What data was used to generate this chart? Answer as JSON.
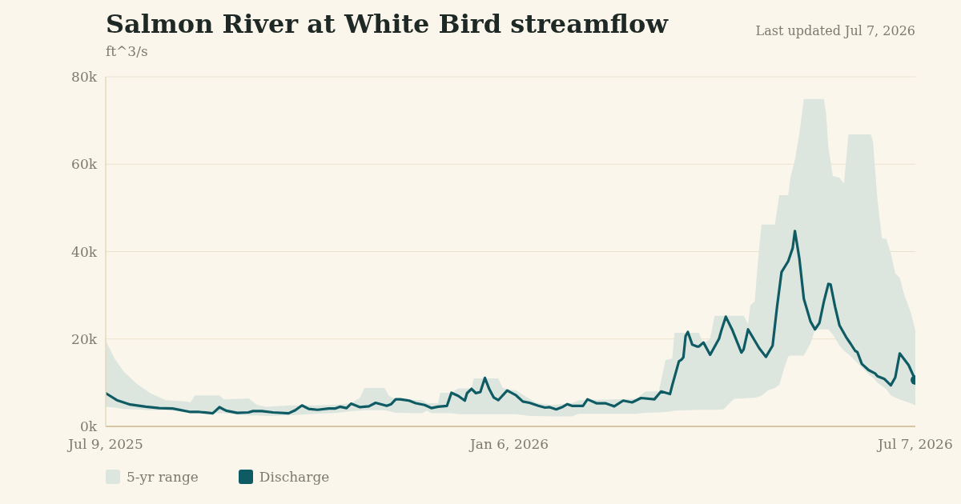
{
  "chart_data": {
    "type": "line",
    "title": "Salmon River at White Bird streamflow",
    "ylabel": "ft^3/s",
    "annotations": [
      "Last updated Jul 7, 2026"
    ],
    "xlim": [
      "2025-07-09",
      "2026-07-07"
    ],
    "xticks": [
      {
        "value": "2025-07-09",
        "label": "Jul 9, 2025"
      },
      {
        "value": "2026-01-06",
        "label": "Jan 6, 2026"
      },
      {
        "value": "2026-07-07",
        "label": "Jul 7, 2026"
      }
    ],
    "ylim": [
      0,
      80000
    ],
    "yticks": [
      {
        "value": 0,
        "label": "0k"
      },
      {
        "value": 20000,
        "label": "20k"
      },
      {
        "value": 40000,
        "label": "40k"
      },
      {
        "value": 60000,
        "label": "60k"
      },
      {
        "value": 80000,
        "label": "80k"
      }
    ],
    "grid": "y",
    "legend": "bottom left",
    "series": [
      {
        "name": "5-yr range",
        "type": "area",
        "color": "#dce6df",
        "x": [
          "2025-07-09",
          "2025-07-13",
          "2025-07-17",
          "2025-07-23",
          "2025-07-29",
          "2025-08-05",
          "2025-08-14",
          "2025-08-16",
          "2025-08-18",
          "2025-08-29",
          "2025-08-31",
          "2025-09-11",
          "2025-09-15",
          "2025-09-19",
          "2025-09-29",
          "2025-10-11",
          "2025-10-21",
          "2025-10-27",
          "2025-10-31",
          "2025-11-02",
          "2025-11-11",
          "2025-11-13",
          "2025-11-16",
          "2025-11-28",
          "2025-11-30",
          "2025-12-02",
          "2025-12-05",
          "2025-12-06",
          "2025-12-11",
          "2025-12-14",
          "2025-12-20",
          "2025-12-21",
          "2026-01-01",
          "2026-01-03",
          "2026-01-09",
          "2026-01-15",
          "2026-01-18",
          "2026-01-25",
          "2026-02-03",
          "2026-02-06",
          "2026-03-04",
          "2026-03-08",
          "2026-03-14",
          "2026-03-17",
          "2026-03-20",
          "2026-03-21",
          "2026-04-01",
          "2026-04-03",
          "2026-04-06",
          "2026-04-08",
          "2026-04-12",
          "2026-04-15",
          "2026-04-17",
          "2026-04-21",
          "2026-04-23",
          "2026-04-24",
          "2026-04-26",
          "2026-04-27",
          "2026-04-29",
          "2026-05-02",
          "2026-05-05",
          "2026-05-07",
          "2026-05-09",
          "2026-05-11",
          "2026-05-12",
          "2026-05-14",
          "2026-05-16",
          "2026-05-18",
          "2026-05-21",
          "2026-05-23",
          "2026-05-27",
          "2026-05-28",
          "2026-05-29",
          "2026-05-31",
          "2026-06-03",
          "2026-06-05",
          "2026-06-07",
          "2026-06-17",
          "2026-06-18",
          "2026-06-20",
          "2026-06-22",
          "2026-06-24",
          "2026-06-26",
          "2026-06-28",
          "2026-06-30",
          "2026-07-02",
          "2026-07-05",
          "2026-07-07"
        ],
        "values": [
          null,
          null,
          null,
          null,
          null,
          null,
          null,
          null,
          null,
          null,
          null,
          null,
          null,
          null,
          null,
          null,
          null,
          null,
          null,
          null,
          null,
          null,
          null,
          null,
          null,
          null,
          null,
          null,
          null,
          null,
          null,
          null,
          null,
          null,
          null,
          null,
          null,
          null,
          null,
          null,
          null,
          null,
          null,
          null,
          null,
          null,
          null,
          null,
          null,
          null,
          null,
          null,
          null,
          null,
          null,
          null,
          null,
          null,
          null,
          null,
          null,
          null,
          null,
          null,
          null,
          null,
          null,
          null,
          null,
          null,
          null,
          null,
          null,
          null,
          null,
          null,
          null,
          null,
          null,
          null,
          null,
          null,
          null,
          null,
          null,
          null,
          null,
          null
        ],
        "lower": [
          4500,
          4300,
          4000,
          3900,
          3700,
          3700,
          3500,
          3300,
          3300,
          3000,
          3000,
          2500,
          2500,
          2400,
          2500,
          2900,
          3100,
          3500,
          3600,
          3700,
          3700,
          3500,
          3100,
          3000,
          3600,
          3000,
          3000,
          3000,
          3000,
          2800,
          2800,
          2800,
          2800,
          2800,
          2800,
          2400,
          2400,
          2300,
          2300,
          2900,
          2900,
          3100,
          3200,
          3300,
          3500,
          3600,
          3800,
          3800,
          3800,
          3800,
          3900,
          5500,
          6300,
          6400,
          6500,
          6500,
          6600,
          6700,
          7000,
          8300,
          8800,
          9500,
          13000,
          16000,
          16200,
          16200,
          16200,
          16200,
          19000,
          22200,
          22200,
          22200,
          22200,
          21000,
          18500,
          17300,
          16500,
          11500,
          11200,
          10000,
          9300,
          8500,
          7100,
          6600,
          6200,
          5800,
          5300,
          4800
        ],
        "upper": [
          19600,
          15500,
          12600,
          9700,
          7600,
          6000,
          5700,
          5500,
          7100,
          7100,
          6200,
          6400,
          4900,
          4500,
          4800,
          4800,
          5000,
          5300,
          6600,
          8800,
          8800,
          7000,
          6200,
          6000,
          5300,
          5300,
          5300,
          7700,
          7700,
          8700,
          8700,
          11000,
          11000,
          8800,
          8200,
          6300,
          5400,
          4900,
          5300,
          6000,
          6300,
          8000,
          8000,
          15200,
          15500,
          21400,
          21400,
          18900,
          20100,
          25300,
          25300,
          25300,
          25300,
          25300,
          23400,
          27700,
          28600,
          35300,
          46200,
          46200,
          46200,
          52900,
          52900,
          52900,
          57000,
          61000,
          67000,
          74900,
          74900,
          74900,
          74900,
          71500,
          64000,
          57300,
          56900,
          55500,
          66800,
          66800,
          65200,
          52000,
          43000,
          42900,
          39600,
          35000,
          34000,
          30200,
          26000,
          22000
        ]
      },
      {
        "name": "Discharge",
        "color": "#0f5b63",
        "line_style": "solid",
        "x": [
          "2025-07-09",
          "2025-07-14",
          "2025-07-20",
          "2025-07-27",
          "2025-08-02",
          "2025-08-08",
          "2025-08-16",
          "2025-08-20",
          "2025-08-26",
          "2025-08-29",
          "2025-09-01",
          "2025-09-06",
          "2025-09-11",
          "2025-09-13",
          "2025-09-17",
          "2025-09-22",
          "2025-09-29",
          "2025-10-02",
          "2025-10-05",
          "2025-10-08",
          "2025-10-12",
          "2025-10-17",
          "2025-10-20",
          "2025-10-22",
          "2025-10-25",
          "2025-10-27",
          "2025-10-31",
          "2025-11-04",
          "2025-11-07",
          "2025-11-12",
          "2025-11-14",
          "2025-11-16",
          "2025-11-18",
          "2025-11-22",
          "2025-11-25",
          "2025-11-29",
          "2025-12-02",
          "2025-12-05",
          "2025-12-09",
          "2025-12-11",
          "2025-12-14",
          "2025-12-17",
          "2025-12-18",
          "2025-12-20",
          "2025-12-22",
          "2025-12-24",
          "2025-12-26",
          "2025-12-28",
          "2025-12-30",
          "2026-01-01",
          "2026-01-05",
          "2026-01-09",
          "2026-01-12",
          "2026-01-15",
          "2026-01-19",
          "2026-01-22",
          "2026-01-24",
          "2026-01-27",
          "2026-01-30",
          "2026-02-01",
          "2026-02-03",
          "2026-02-08",
          "2026-02-10",
          "2026-02-14",
          "2026-02-18",
          "2026-02-22",
          "2026-02-26",
          "2026-03-02",
          "2026-03-06",
          "2026-03-12",
          "2026-03-15",
          "2026-03-19",
          "2026-03-20",
          "2026-03-23",
          "2026-03-24",
          "2026-03-25",
          "2026-03-26",
          "2026-03-27",
          "2026-03-29",
          "2026-03-31",
          "2026-04-01",
          "2026-04-03",
          "2026-04-06",
          "2026-04-10",
          "2026-04-11",
          "2026-04-13",
          "2026-04-16",
          "2026-04-17",
          "2026-04-20",
          "2026-04-21",
          "2026-04-23",
          "2026-04-28",
          "2026-05-01",
          "2026-05-04",
          "2026-05-06",
          "2026-05-08",
          "2026-05-11",
          "2026-05-13",
          "2026-05-14",
          "2026-05-16",
          "2026-05-18",
          "2026-05-21",
          "2026-05-23",
          "2026-05-25",
          "2026-05-27",
          "2026-05-29",
          "2026-05-30",
          "2026-06-01",
          "2026-06-03",
          "2026-06-06",
          "2026-06-08",
          "2026-06-10",
          "2026-06-11",
          "2026-06-13",
          "2026-06-16",
          "2026-06-19",
          "2026-06-20",
          "2026-06-23",
          "2026-06-26",
          "2026-06-28",
          "2026-06-30",
          "2026-07-04",
          "2026-07-07"
        ],
        "values": [
          7600,
          6000,
          5000,
          4500,
          4200,
          4100,
          3300,
          3300,
          3000,
          4400,
          3600,
          3100,
          3200,
          3500,
          3500,
          3200,
          3000,
          3700,
          4800,
          4000,
          3800,
          4100,
          4100,
          4500,
          4200,
          5200,
          4400,
          4600,
          5400,
          4700,
          5100,
          6200,
          6200,
          5900,
          5300,
          4900,
          4200,
          4500,
          4700,
          7700,
          7000,
          5900,
          7600,
          8600,
          7600,
          7900,
          11100,
          8500,
          6600,
          6000,
          8200,
          7100,
          5700,
          5400,
          4700,
          4300,
          4400,
          3900,
          4500,
          5100,
          4700,
          4700,
          6200,
          5300,
          5300,
          4600,
          5900,
          5500,
          6500,
          6200,
          8000,
          7400,
          9400,
          14900,
          15200,
          15800,
          20700,
          21600,
          18700,
          18300,
          18300,
          19200,
          16400,
          20100,
          21900,
          25100,
          22000,
          20700,
          16900,
          17600,
          22200,
          17900,
          15900,
          18500,
          27400,
          35300,
          37800,
          40800,
          44700,
          38400,
          29200,
          24000,
          22200,
          23700,
          28600,
          32600,
          32500,
          27400,
          23100,
          20400,
          18900,
          17300,
          17000,
          14300,
          12900,
          12100,
          11500,
          10900,
          9400,
          11200,
          16700,
          14000,
          10600
        ]
      },
      {
        "type": "scatter",
        "color": "#0f5b63",
        "marker": "circle",
        "x": [
          "2026-07-07"
        ],
        "values": [
          10600
        ]
      }
    ]
  }
}
